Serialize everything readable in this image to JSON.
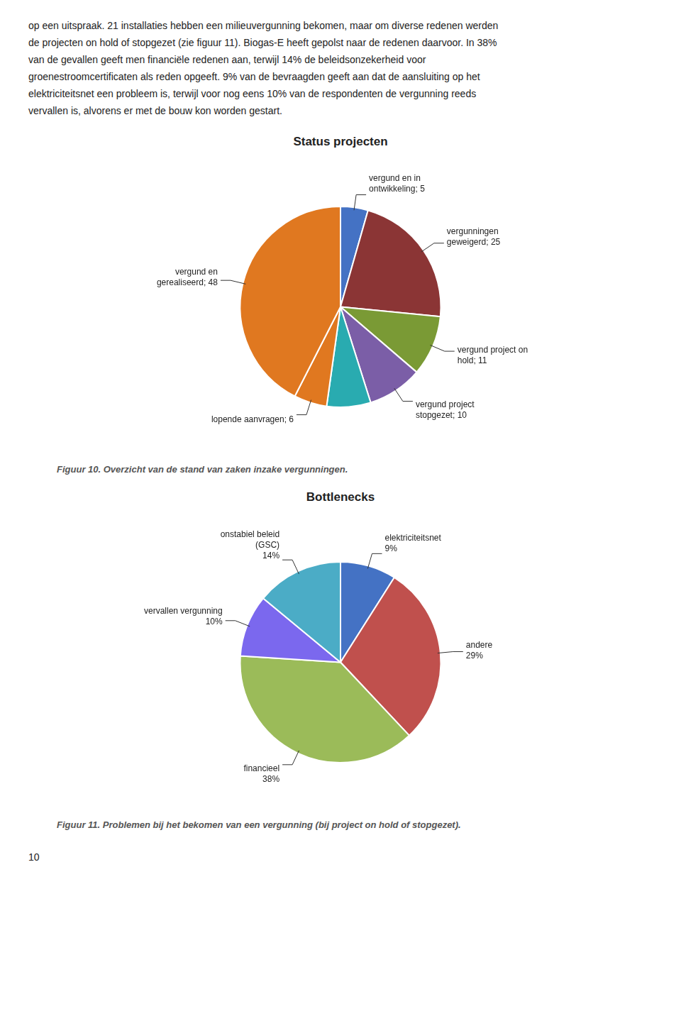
{
  "text": [
    "op een uitspraak. 21 installaties hebben een milieuvergunning bekomen, maar om diverse redenen werden",
    "de projecten on hold of stopgezet (zie figuur 11). Biogas-E heeft gepolst naar de redenen daarvoor. In 38%",
    "van de gevallen geeft men financiële redenen aan, terwijl 14% de beleidsonzekerheid voor",
    "groenestroomcertificaten als reden opgeeft. 9% van de bevraagden geeft aan dat de aansluiting op het",
    "elektriciteitsnet een probleem is, terwijl voor nog eens 10% van de respondenten de vergunning reeds",
    "vervallen is, alvorens er met de bouw kon worden gestart."
  ],
  "chart_data": [
    {
      "type": "pie",
      "title": "Status projecten",
      "values": [
        5,
        25,
        11,
        10,
        8,
        6,
        48
      ],
      "colors": [
        "#4472C4",
        "#8B3535",
        "#7A9A35",
        "#7B5EA7",
        "#29ABB0",
        "#E07820",
        "#E07820"
      ],
      "annotations": [
        "vergund en in\nontwikkeling; 5",
        "vergunningen\ngeweigerd; 25",
        "vergund project on\nhold; 11",
        "vergund project\nstopgezet; 10",
        null,
        "lopende aanvragen; 6",
        "vergund en\ngerealiseerd; 48"
      ],
      "caption": "Figuur 10. Overzicht van de stand van zaken inzake vergunningen.",
      "legend": false
    },
    {
      "type": "pie",
      "title": "Bottlenecks",
      "values": [
        9,
        29,
        38,
        10,
        14
      ],
      "colors": [
        "#4472C4",
        "#C0504D",
        "#9BBB59",
        "#7B68EE",
        "#4BACC6"
      ],
      "annotations": [
        "elektriciteitsnet\n9%",
        "andere\n29%",
        "financieel\n38%",
        "vervallen vergunning\n10%",
        "onstabiel beleid\n(GSC)\n14%"
      ],
      "caption": "Figuur 11. Problemen bij het bekomen van een vergunning (bij project on hold of stopgezet).",
      "legend": false
    }
  ],
  "page_number": "10"
}
